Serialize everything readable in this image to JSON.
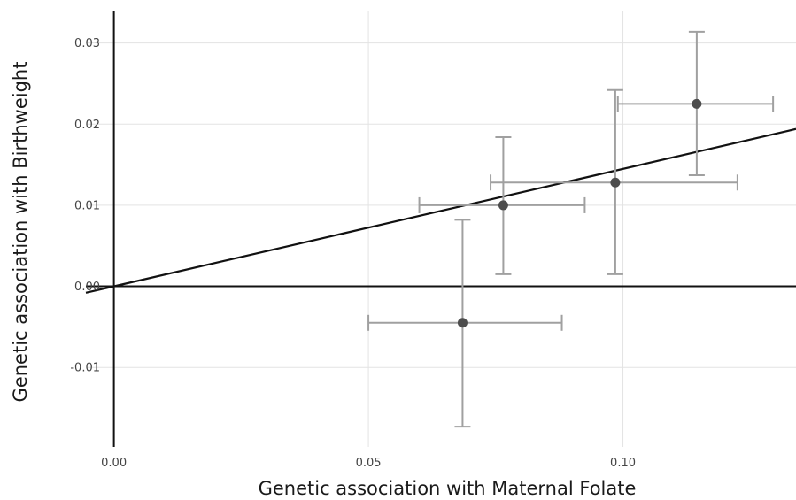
{
  "chart_data": {
    "type": "scatter",
    "title": "",
    "xlabel": "Genetic association with Maternal Folate",
    "ylabel": "Genetic association with Birthweight",
    "xlim": [
      -0.0055,
      0.134
    ],
    "ylim": [
      -0.0198,
      0.034
    ],
    "x_ticks": [
      {
        "value": 0.0,
        "label": "0.00"
      },
      {
        "value": 0.05,
        "label": "0.05"
      },
      {
        "value": 0.1,
        "label": "0.10"
      }
    ],
    "y_ticks": [
      {
        "value": -0.01,
        "label": "-0.01"
      },
      {
        "value": 0.0,
        "label": "0.00"
      },
      {
        "value": 0.01,
        "label": "0.01"
      },
      {
        "value": 0.02,
        "label": "0.02"
      },
      {
        "value": 0.03,
        "label": "0.03"
      }
    ],
    "grid": true,
    "points": [
      {
        "x": 0.0685,
        "y": -0.0045,
        "x_low": 0.05,
        "x_high": 0.088,
        "y_low": -0.0173,
        "y_high": 0.0082
      },
      {
        "x": 0.0765,
        "y": 0.01,
        "x_low": 0.06,
        "x_high": 0.0925,
        "y_low": 0.0015,
        "y_high": 0.0184
      },
      {
        "x": 0.0985,
        "y": 0.0128,
        "x_low": 0.074,
        "x_high": 0.1225,
        "y_low": 0.0015,
        "y_high": 0.0242
      },
      {
        "x": 0.1145,
        "y": 0.0225,
        "x_low": 0.099,
        "x_high": 0.1295,
        "y_low": 0.0137,
        "y_high": 0.0314
      }
    ],
    "fit_line": {
      "slope": 0.1448,
      "intercept": 0.0
    },
    "colors": {
      "point": "#4d4d4d",
      "error_bar": "#a0a0a0",
      "fit_line": "#111111",
      "zero_lines": "#111111",
      "grid": "#e3e3e3"
    }
  }
}
